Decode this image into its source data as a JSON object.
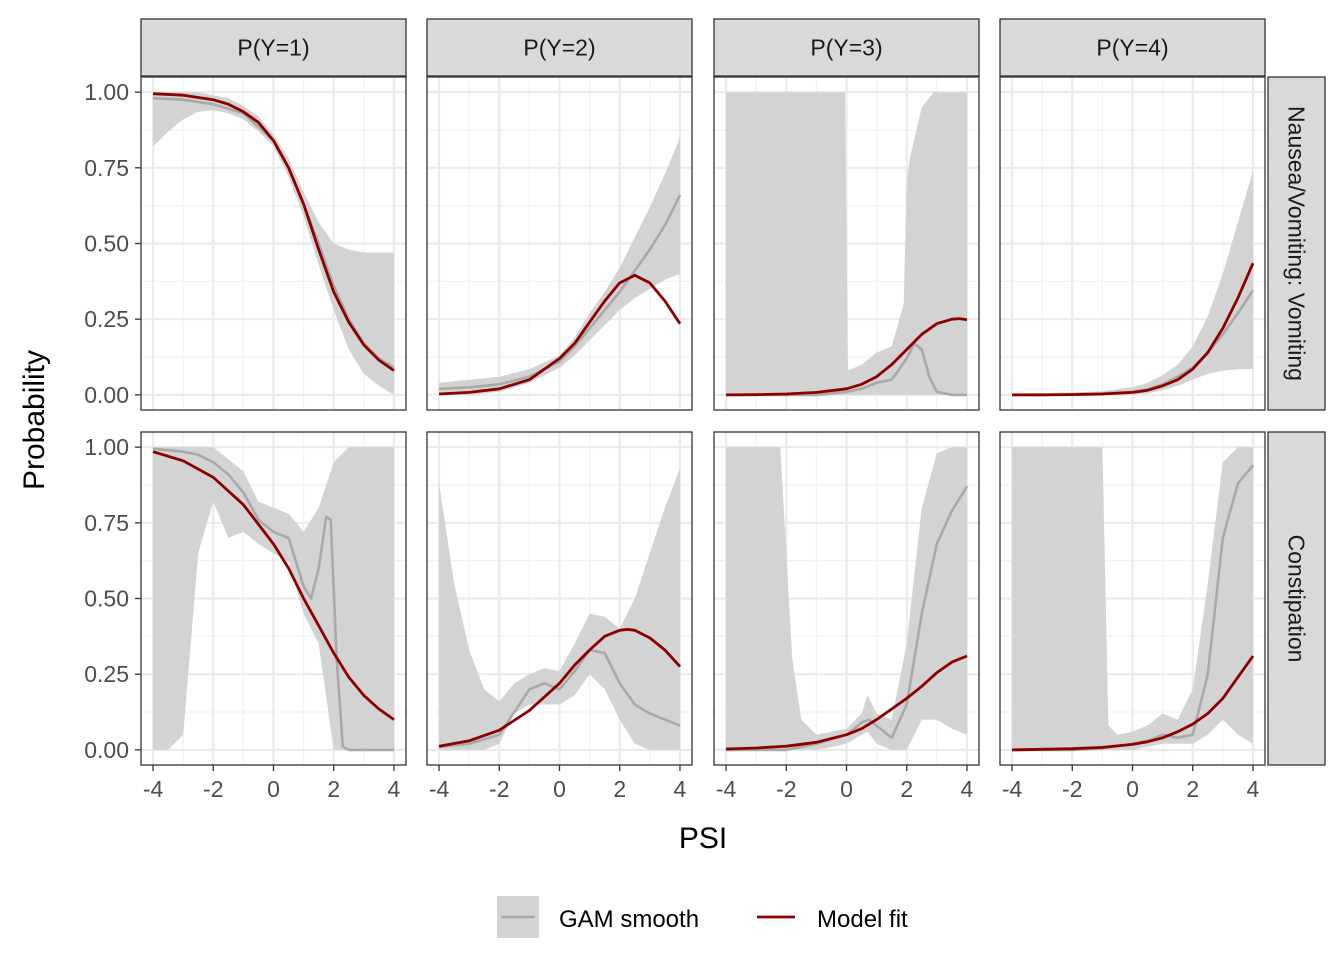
{
  "chart_data": {
    "type": "line",
    "layout": "facet_grid",
    "xlabel": "PSI",
    "ylabel": "Probability",
    "xlim": [
      -4.4,
      4.4
    ],
    "ylim": [
      -0.05,
      1.05
    ],
    "x_ticks": [
      -4,
      -2,
      0,
      2,
      4
    ],
    "x_tick_labels": [
      "-4",
      "-2",
      "0",
      "2",
      "4"
    ],
    "y_ticks": [
      0,
      0.25,
      0.5,
      0.75,
      1
    ],
    "y_tick_labels": [
      "0.00",
      "0.25",
      "0.50",
      "0.75",
      "1.00"
    ],
    "grid": true,
    "legend_position": "bottom",
    "column_strips": [
      "P(Y=1)",
      "P(Y=2)",
      "P(Y=3)",
      "P(Y=4)"
    ],
    "row_strips": [
      "Nausea/Vomiting: Vomiting",
      "Constipation"
    ],
    "legend": [
      {
        "label": "GAM smooth",
        "color": "#a9a9a9",
        "band": "#d3d3d3"
      },
      {
        "label": "Model fit",
        "color": "#8b0000"
      }
    ],
    "colors": {
      "gam_line": "#a9a9a9",
      "gam_band": "#d3d3d3",
      "model_line": "#8b0000",
      "grid": "#ebebeb",
      "strip_bg": "#d9d9d9",
      "border": "#333333"
    },
    "panels": [
      {
        "row": 0,
        "col": 0,
        "model_fit": {
          "x": [
            -4,
            -3,
            -2,
            -1.5,
            -1,
            -0.5,
            0,
            0.5,
            1,
            1.5,
            2,
            2.5,
            3,
            3.5,
            4
          ],
          "y": [
            0.995,
            0.99,
            0.975,
            0.96,
            0.935,
            0.9,
            0.84,
            0.75,
            0.63,
            0.48,
            0.34,
            0.24,
            0.165,
            0.115,
            0.08
          ]
        },
        "gam_smooth": {
          "x": [
            -4,
            -3,
            -2,
            -1,
            0,
            0.5,
            1,
            1.5,
            2,
            2.5,
            3,
            3.5,
            4
          ],
          "y": [
            0.98,
            0.975,
            0.96,
            0.93,
            0.84,
            0.75,
            0.63,
            0.5,
            0.36,
            0.25,
            0.17,
            0.12,
            0.09
          ]
        },
        "gam_band": {
          "x": [
            -4,
            -3.5,
            -3,
            -2.5,
            -2,
            -1.5,
            -1,
            -0.5,
            0,
            0.5,
            1,
            1.5,
            2,
            2.5,
            3,
            3.5,
            4
          ],
          "lower": [
            0.82,
            0.87,
            0.91,
            0.935,
            0.94,
            0.93,
            0.91,
            0.87,
            0.82,
            0.72,
            0.59,
            0.43,
            0.28,
            0.15,
            0.07,
            0.03,
            0.0
          ],
          "upper": [
            1.0,
            1.0,
            1.0,
            1.0,
            0.99,
            0.98,
            0.955,
            0.92,
            0.86,
            0.78,
            0.67,
            0.57,
            0.5,
            0.48,
            0.47,
            0.47,
            0.47
          ]
        }
      },
      {
        "row": 0,
        "col": 1,
        "model_fit": {
          "x": [
            -4,
            -3,
            -2,
            -1,
            0,
            0.5,
            1,
            1.5,
            2,
            2.5,
            3,
            3.5,
            4
          ],
          "y": [
            0.003,
            0.008,
            0.02,
            0.05,
            0.12,
            0.17,
            0.24,
            0.31,
            0.37,
            0.395,
            0.37,
            0.31,
            0.235
          ]
        },
        "gam_smooth": {
          "x": [
            -4,
            -3,
            -2,
            -1,
            0,
            0.5,
            1,
            1.5,
            2,
            2.5,
            3,
            3.5,
            4
          ],
          "y": [
            0.02,
            0.025,
            0.035,
            0.06,
            0.11,
            0.16,
            0.22,
            0.28,
            0.34,
            0.41,
            0.48,
            0.56,
            0.66
          ]
        },
        "gam_band": {
          "x": [
            -4,
            -3,
            -2,
            -1,
            0,
            0.5,
            1,
            1.5,
            2,
            2.5,
            3,
            3.5,
            4
          ],
          "lower": [
            0.0,
            0.0,
            0.01,
            0.04,
            0.09,
            0.13,
            0.18,
            0.23,
            0.28,
            0.32,
            0.35,
            0.38,
            0.4
          ],
          "upper": [
            0.04,
            0.05,
            0.06,
            0.085,
            0.13,
            0.19,
            0.27,
            0.34,
            0.42,
            0.52,
            0.62,
            0.73,
            0.85
          ]
        }
      },
      {
        "row": 0,
        "col": 2,
        "model_fit": {
          "x": [
            -4,
            -3,
            -2,
            -1,
            0,
            0.5,
            1,
            1.5,
            2,
            2.5,
            3,
            3.5,
            3.75,
            4
          ],
          "y": [
            0.0,
            0.001,
            0.003,
            0.008,
            0.02,
            0.035,
            0.06,
            0.1,
            0.15,
            0.2,
            0.235,
            0.25,
            0.252,
            0.248
          ]
        },
        "gam_smooth": {
          "x": [
            -4,
            -3,
            -2,
            -1,
            0,
            0.5,
            1,
            1.5,
            2,
            2.25,
            2.5,
            2.75,
            3,
            3.5,
            4
          ],
          "y": [
            0.0,
            0.0,
            0.0,
            0.0,
            0.01,
            0.02,
            0.04,
            0.05,
            0.12,
            0.17,
            0.15,
            0.06,
            0.01,
            0.0,
            0.0
          ]
        },
        "gam_band": {
          "x": [
            -4,
            -3,
            -2,
            -1,
            -0.05,
            0.05,
            0.5,
            1,
            1.5,
            1.9,
            2.0,
            2.1,
            2.5,
            2.9,
            3.0,
            3.5,
            4
          ],
          "lower": [
            0.0,
            0.0,
            0.0,
            0.0,
            0.0,
            0.0,
            0.0,
            0.0,
            0.0,
            0.0,
            0.0,
            0.0,
            0.0,
            0.0,
            0.0,
            0.0,
            0.0
          ],
          "upper": [
            1.0,
            1.0,
            1.0,
            1.0,
            1.0,
            0.08,
            0.1,
            0.14,
            0.16,
            0.3,
            0.7,
            0.78,
            0.95,
            1.0,
            1.0,
            1.0,
            1.0
          ]
        }
      },
      {
        "row": 0,
        "col": 3,
        "model_fit": {
          "x": [
            -4,
            -3,
            -2,
            -1,
            0,
            0.5,
            1,
            1.5,
            2,
            2.5,
            3,
            3.5,
            4
          ],
          "y": [
            0.0,
            0.0,
            0.001,
            0.003,
            0.008,
            0.015,
            0.03,
            0.05,
            0.085,
            0.14,
            0.22,
            0.32,
            0.435
          ]
        },
        "gam_smooth": {
          "x": [
            -4,
            -3,
            -2,
            -1,
            0,
            0.5,
            1,
            1.5,
            2,
            2.5,
            3,
            3.5,
            4
          ],
          "y": [
            0.0,
            0.0,
            0.002,
            0.005,
            0.01,
            0.018,
            0.035,
            0.06,
            0.09,
            0.14,
            0.2,
            0.27,
            0.345
          ]
        },
        "gam_band": {
          "x": [
            -4,
            -3,
            -2,
            -1,
            0,
            0.5,
            1,
            1.5,
            2,
            2.5,
            3,
            3.5,
            4
          ],
          "lower": [
            0.0,
            0.0,
            0.0,
            0.0,
            0.0,
            0.005,
            0.015,
            0.03,
            0.05,
            0.07,
            0.08,
            0.085,
            0.085
          ],
          "upper": [
            0.005,
            0.006,
            0.008,
            0.012,
            0.025,
            0.04,
            0.065,
            0.1,
            0.16,
            0.26,
            0.4,
            0.57,
            0.74
          ]
        }
      },
      {
        "row": 1,
        "col": 0,
        "model_fit": {
          "x": [
            -4,
            -3,
            -2,
            -1,
            0,
            0.5,
            1,
            1.5,
            2,
            2.5,
            3,
            3.5,
            4
          ],
          "y": [
            0.985,
            0.955,
            0.9,
            0.81,
            0.68,
            0.6,
            0.5,
            0.41,
            0.32,
            0.24,
            0.18,
            0.135,
            0.1
          ]
        },
        "gam_smooth": {
          "x": [
            -4,
            -3.5,
            -3,
            -2.5,
            -2,
            -1.5,
            -1,
            -0.5,
            0,
            0.5,
            1,
            1.25,
            1.5,
            1.75,
            1.9,
            2.1,
            2.3,
            2.5,
            3,
            4
          ],
          "y": [
            0.995,
            0.99,
            0.985,
            0.975,
            0.95,
            0.91,
            0.85,
            0.76,
            0.72,
            0.7,
            0.54,
            0.5,
            0.6,
            0.77,
            0.76,
            0.3,
            0.01,
            0.0,
            0.0,
            0.0
          ]
        },
        "gam_band": {
          "x": [
            -4,
            -3.5,
            -3,
            -2.5,
            -2,
            -1.5,
            -1,
            -0.5,
            0,
            0.5,
            1,
            1.5,
            2,
            2.5,
            3,
            3.5,
            4
          ],
          "lower": [
            0.0,
            0.0,
            0.05,
            0.65,
            0.82,
            0.7,
            0.72,
            0.68,
            0.65,
            0.62,
            0.45,
            0.35,
            0.0,
            0.0,
            0.0,
            0.0,
            0.0
          ],
          "upper": [
            1.0,
            1.0,
            1.0,
            1.0,
            1.0,
            0.96,
            0.92,
            0.82,
            0.8,
            0.78,
            0.72,
            0.8,
            0.95,
            1.0,
            1.0,
            1.0,
            1.0
          ]
        }
      },
      {
        "row": 1,
        "col": 1,
        "model_fit": {
          "x": [
            -4,
            -3,
            -2,
            -1,
            0,
            0.5,
            1,
            1.5,
            2,
            2.25,
            2.5,
            3,
            3.5,
            4
          ],
          "y": [
            0.012,
            0.03,
            0.065,
            0.13,
            0.22,
            0.28,
            0.33,
            0.375,
            0.395,
            0.398,
            0.395,
            0.37,
            0.33,
            0.275
          ]
        },
        "gam_smooth": {
          "x": [
            -4,
            -3,
            -2,
            -1,
            -0.5,
            0,
            0.5,
            1,
            1.5,
            2,
            2.5,
            3,
            3.5,
            4
          ],
          "y": [
            0.01,
            0.02,
            0.05,
            0.2,
            0.22,
            0.2,
            0.26,
            0.33,
            0.32,
            0.22,
            0.15,
            0.12,
            0.1,
            0.08
          ]
        },
        "gam_band": {
          "x": [
            -4,
            -3.5,
            -3,
            -2.5,
            -2,
            -1.5,
            -1,
            -0.5,
            0,
            0.5,
            1,
            1.5,
            2,
            2.5,
            3,
            3.5,
            4
          ],
          "lower": [
            0.0,
            0.0,
            0.0,
            0.0,
            0.02,
            0.12,
            0.15,
            0.15,
            0.15,
            0.18,
            0.25,
            0.2,
            0.1,
            0.02,
            0.0,
            0.0,
            0.0
          ],
          "upper": [
            0.88,
            0.55,
            0.33,
            0.2,
            0.16,
            0.22,
            0.25,
            0.27,
            0.26,
            0.35,
            0.45,
            0.44,
            0.4,
            0.5,
            0.65,
            0.8,
            0.93
          ]
        }
      },
      {
        "row": 1,
        "col": 2,
        "model_fit": {
          "x": [
            -4,
            -3,
            -2,
            -1,
            0,
            0.5,
            1,
            1.5,
            2,
            2.5,
            3,
            3.5,
            4
          ],
          "y": [
            0.003,
            0.006,
            0.012,
            0.025,
            0.05,
            0.07,
            0.1,
            0.135,
            0.17,
            0.21,
            0.255,
            0.29,
            0.31
          ]
        },
        "gam_smooth": {
          "x": [
            -4,
            -3,
            -2,
            -1,
            0,
            0.5,
            0.75,
            1,
            1.5,
            2,
            2.5,
            3,
            3.5,
            4
          ],
          "y": [
            0.0,
            0.0,
            0.0,
            0.02,
            0.05,
            0.09,
            0.1,
            0.08,
            0.04,
            0.15,
            0.45,
            0.68,
            0.79,
            0.87
          ]
        },
        "gam_band": {
          "x": [
            -4,
            -3,
            -2.2,
            -1.8,
            -1.5,
            -1,
            0,
            0.5,
            0.7,
            1,
            1.5,
            2,
            2.5,
            3,
            3.5,
            4
          ],
          "lower": [
            0.0,
            0.0,
            0.0,
            0.0,
            0.0,
            0.0,
            0.02,
            0.05,
            0.06,
            0.02,
            0.0,
            0.0,
            0.1,
            0.1,
            0.07,
            0.05
          ],
          "upper": [
            1.0,
            1.0,
            1.0,
            0.3,
            0.1,
            0.05,
            0.07,
            0.12,
            0.18,
            0.12,
            0.1,
            0.35,
            0.8,
            0.98,
            1.0,
            1.0
          ]
        }
      },
      {
        "row": 1,
        "col": 3,
        "model_fit": {
          "x": [
            -4,
            -3,
            -2,
            -1,
            0,
            0.5,
            1,
            1.5,
            2,
            2.5,
            3,
            3.5,
            4
          ],
          "y": [
            0.0,
            0.002,
            0.004,
            0.008,
            0.018,
            0.027,
            0.04,
            0.06,
            0.085,
            0.12,
            0.17,
            0.24,
            0.31
          ]
        },
        "gam_smooth": {
          "x": [
            -4,
            -3,
            -2,
            -1,
            0,
            0.5,
            1,
            1.5,
            2,
            2.5,
            3,
            3.5,
            4
          ],
          "y": [
            0.0,
            0.0,
            0.0,
            0.005,
            0.02,
            0.03,
            0.05,
            0.04,
            0.05,
            0.25,
            0.7,
            0.88,
            0.94
          ]
        },
        "gam_band": {
          "x": [
            -4,
            -3,
            -2,
            -1,
            -0.8,
            -0.5,
            0,
            0.5,
            1,
            1.5,
            2,
            2.5,
            3,
            3.5,
            4
          ],
          "lower": [
            0.0,
            0.0,
            0.0,
            0.0,
            0.0,
            0.0,
            0.0,
            0.01,
            0.02,
            0.02,
            0.02,
            0.05,
            0.1,
            0.05,
            0.02
          ],
          "upper": [
            1.0,
            1.0,
            1.0,
            1.0,
            0.08,
            0.05,
            0.06,
            0.08,
            0.12,
            0.1,
            0.2,
            0.55,
            0.95,
            1.0,
            1.0
          ]
        }
      }
    ]
  }
}
